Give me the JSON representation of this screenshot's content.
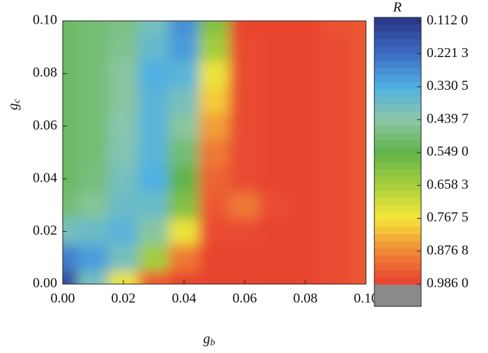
{
  "chart_data": {
    "type": "heatmap",
    "xlabel": "g",
    "xlabel_sub": "b",
    "ylabel": "g",
    "ylabel_sub": "c",
    "x": [
      0,
      0.01,
      0.02,
      0.03,
      0.04,
      0.05,
      0.06,
      0.07,
      0.08,
      0.09,
      0.1
    ],
    "y": [
      0,
      0.01,
      0.02,
      0.03,
      0.04,
      0.05,
      0.06,
      0.07,
      0.08,
      0.09,
      0.1
    ],
    "z": [
      [
        0.15,
        0.4,
        0.75,
        0.95,
        0.98,
        0.98,
        0.98,
        0.98,
        0.98,
        0.97,
        0.95
      ],
      [
        0.25,
        0.3,
        0.4,
        0.65,
        0.9,
        0.98,
        0.98,
        0.98,
        0.98,
        0.97,
        0.95
      ],
      [
        0.4,
        0.38,
        0.35,
        0.45,
        0.75,
        0.97,
        0.97,
        0.98,
        0.98,
        0.97,
        0.95
      ],
      [
        0.5,
        0.46,
        0.38,
        0.38,
        0.6,
        0.95,
        0.9,
        0.97,
        0.98,
        0.97,
        0.95
      ],
      [
        0.52,
        0.49,
        0.4,
        0.33,
        0.55,
        0.93,
        0.97,
        0.98,
        0.98,
        0.97,
        0.95
      ],
      [
        0.52,
        0.5,
        0.42,
        0.35,
        0.5,
        0.9,
        0.97,
        0.98,
        0.98,
        0.97,
        0.95
      ],
      [
        0.52,
        0.5,
        0.43,
        0.35,
        0.45,
        0.85,
        0.97,
        0.98,
        0.98,
        0.97,
        0.95
      ],
      [
        0.52,
        0.5,
        0.45,
        0.35,
        0.4,
        0.8,
        0.97,
        0.98,
        0.98,
        0.97,
        0.95
      ],
      [
        0.52,
        0.5,
        0.45,
        0.33,
        0.35,
        0.75,
        0.97,
        0.98,
        0.98,
        0.97,
        0.95
      ],
      [
        0.52,
        0.5,
        0.47,
        0.37,
        0.3,
        0.65,
        0.97,
        0.98,
        0.98,
        0.97,
        0.95
      ],
      [
        0.52,
        0.5,
        0.48,
        0.4,
        0.28,
        0.6,
        0.98,
        0.98,
        0.98,
        0.96,
        0.95
      ]
    ],
    "xlim": [
      0,
      0.1
    ],
    "ylim": [
      0,
      0.1
    ],
    "xticks": [
      {
        "value": 0,
        "label": "0.00"
      },
      {
        "value": 0.02,
        "label": "0.02"
      },
      {
        "value": 0.04,
        "label": "0.04"
      },
      {
        "value": 0.06,
        "label": "0.06"
      },
      {
        "value": 0.08,
        "label": "0.08"
      },
      {
        "value": 0.1,
        "label": "0.10"
      }
    ],
    "yticks": [
      {
        "value": 0,
        "label": "0.00"
      },
      {
        "value": 0.02,
        "label": "0.02"
      },
      {
        "value": 0.04,
        "label": "0.04"
      },
      {
        "value": 0.06,
        "label": "0.06"
      },
      {
        "value": 0.08,
        "label": "0.08"
      },
      {
        "value": 0.1,
        "label": "0.10"
      }
    ],
    "colorbar_title": "R",
    "zlim": [
      0.1,
      1.06
    ],
    "zticks": [
      {
        "value": 0.112,
        "label": "0.112 0"
      },
      {
        "value": 0.2213,
        "label": "0.221 3"
      },
      {
        "value": 0.3305,
        "label": "0.330 5"
      },
      {
        "value": 0.4397,
        "label": "0.439 7"
      },
      {
        "value": 0.549,
        "label": "0.549 0"
      },
      {
        "value": 0.6583,
        "label": "0.658 3"
      },
      {
        "value": 0.7675,
        "label": "0.767 5"
      },
      {
        "value": 0.8768,
        "label": "0.876 8"
      },
      {
        "value": 0.986,
        "label": "0.986 0"
      }
    ],
    "colormap": [
      "#2b3a8c",
      "#3d6cc4",
      "#4fb0e2",
      "#8cc8a8",
      "#5fb44a",
      "#a8cf3c",
      "#f6e73a",
      "#f08838",
      "#e8402f"
    ],
    "under_color": "#111111",
    "over_color": "#8a8a8a"
  }
}
